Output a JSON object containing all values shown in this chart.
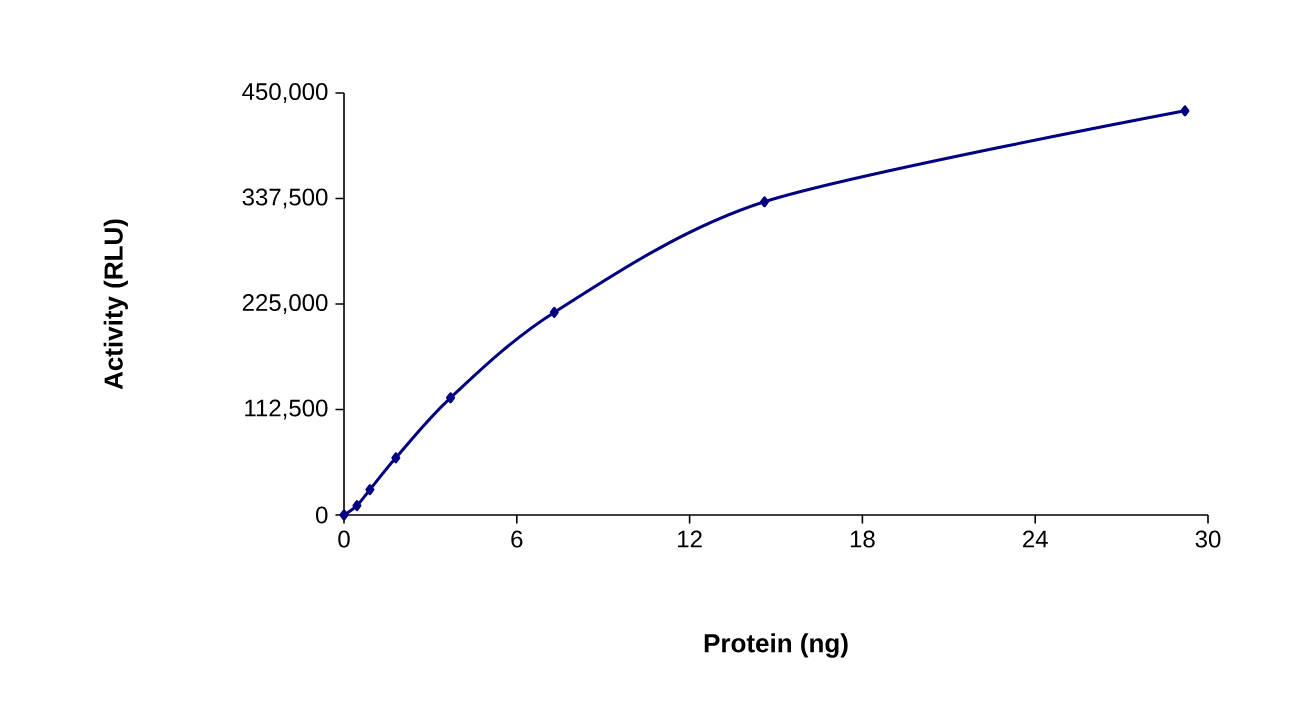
{
  "chart_data": {
    "type": "line",
    "xlabel": "Protein (ng)",
    "ylabel": "Activity (RLU)",
    "x": [
      0,
      0.45,
      0.9,
      1.8,
      3.7,
      7.3,
      14.6,
      29.2
    ],
    "series": [
      {
        "color": "#000080",
        "values": [
          0,
          10000,
          27000,
          61000,
          125000,
          216000,
          334000,
          431000
        ]
      }
    ],
    "xlim": [
      0,
      30
    ],
    "xticks": [
      0,
      6,
      12,
      18,
      24,
      30
    ],
    "ylim": [
      0,
      450000
    ],
    "yticks": [
      0,
      {
        "value": 112500,
        "label": "112,500"
      },
      {
        "value": 225000,
        "label": "225,000"
      },
      {
        "value": 337500,
        "label": "337,500"
      },
      {
        "value": 450000,
        "label": "450,000"
      }
    ],
    "marker": "diamond",
    "line_style": "solid"
  }
}
